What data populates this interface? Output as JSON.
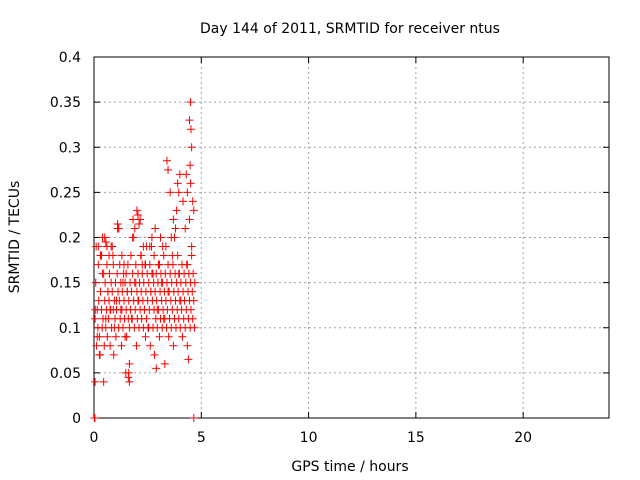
{
  "chart_data": {
    "type": "scatter",
    "title": "Day 144 of 2011, SRMTID for receiver ntus",
    "xlabel": "GPS time / hours",
    "ylabel": "SRMTID / TECUs",
    "xlim": [
      0,
      24
    ],
    "ylim": [
      0,
      0.4
    ],
    "x_ticks": [
      0,
      5,
      10,
      15,
      20
    ],
    "y_ticks": [
      0,
      0.05,
      0.1,
      0.15,
      0.2,
      0.25,
      0.3,
      0.35,
      0.4
    ],
    "y_tick_labels": [
      "0",
      "0.05",
      "0.1",
      "0.15",
      "0.2",
      "0.25",
      "0.3",
      "0.35",
      "0.4"
    ],
    "grid": true,
    "marker": "plus",
    "colors": {
      "points": "#ff0000",
      "grid": "#a0a0a0",
      "axes": "#000000"
    },
    "series": [
      {
        "x": [
          0.05,
          0.08,
          0.1,
          0.12,
          0.15,
          0.18,
          0.2,
          0.22,
          0.25,
          0.28,
          0.3,
          0.32,
          0.35,
          0.38,
          0.4,
          0.42,
          0.45,
          0.48,
          0.5,
          0.52,
          0.55,
          0.58,
          0.6,
          0.62,
          0.65,
          0.68,
          0.7,
          0.72,
          0.75,
          0.78,
          0.8,
          0.82,
          0.85,
          0.88,
          0.9,
          0.92,
          0.95,
          0.98,
          1.0,
          1.02,
          1.05,
          1.08,
          1.1,
          1.12,
          1.15,
          1.18,
          1.2,
          1.22,
          1.25,
          1.28,
          1.3,
          1.32,
          1.35,
          1.38,
          1.4,
          1.42,
          1.45,
          1.48,
          1.5,
          1.52,
          1.55,
          1.58,
          1.6,
          1.62,
          1.65,
          1.68,
          1.7,
          1.72,
          1.75,
          1.78,
          1.8,
          1.82,
          1.85,
          1.88,
          1.9,
          1.92,
          1.95,
          1.98,
          2.0,
          2.02,
          2.05,
          2.08,
          2.1,
          2.12,
          2.15,
          2.18,
          2.2,
          2.22,
          2.25,
          2.28,
          2.3,
          2.32,
          2.35,
          2.38,
          2.4,
          2.42,
          2.45,
          2.48,
          2.5,
          2.52,
          2.55,
          2.58,
          2.6,
          2.62,
          2.65,
          2.68,
          2.7,
          2.72,
          2.75,
          2.78,
          2.8,
          2.82,
          2.85,
          2.88,
          2.9,
          2.92,
          2.95,
          2.98,
          3.0,
          3.02,
          3.05,
          3.08,
          3.1,
          3.12,
          3.15,
          3.18,
          3.2,
          3.22,
          3.25,
          3.28,
          3.3,
          3.32,
          3.35,
          3.38,
          3.4,
          3.42,
          3.45,
          3.48,
          3.5,
          3.52,
          3.55,
          3.58,
          3.6,
          3.62,
          3.65,
          3.68,
          3.7,
          3.72,
          3.75,
          3.78,
          3.8,
          3.82,
          3.85,
          3.88,
          3.9,
          3.92,
          3.95,
          3.98,
          4.0,
          4.02,
          4.05,
          4.08,
          4.1,
          4.12,
          4.15,
          4.18,
          4.2,
          4.22,
          4.25,
          4.28,
          4.3,
          4.32,
          4.35,
          4.38,
          4.4,
          4.42,
          4.45,
          4.48,
          4.5,
          4.52,
          4.55,
          4.58,
          4.6,
          4.62,
          4.65,
          4.68,
          4.7,
          0.06,
          0.15,
          0.25,
          0.35,
          0.45,
          0.55,
          0.65,
          0.75,
          0.85,
          0.95,
          1.05,
          1.15,
          1.25,
          1.35,
          1.45,
          1.55,
          1.65,
          1.75,
          1.85,
          1.95,
          2.05,
          2.15,
          2.25,
          2.35,
          2.45,
          2.55,
          2.65,
          2.75,
          2.85,
          2.95,
          3.05,
          3.15,
          3.25,
          3.35,
          3.45,
          3.55,
          3.65,
          3.75,
          3.85,
          3.95,
          4.05,
          4.15,
          4.25,
          4.35,
          4.45,
          4.55,
          4.65,
          0.02,
          0.03,
          0.04,
          0.05,
          1.6,
          1.62,
          1.65,
          2.9,
          3.3,
          4.4,
          4.45,
          4.5,
          4.52,
          4.55,
          4.48,
          4.5,
          3.4,
          3.45,
          2.0,
          2.05,
          2.1,
          1.1,
          1.15,
          0.5,
          0.55,
          0.6,
          4.3,
          4.35,
          4.6,
          4.65,
          3.9,
          3.95,
          4.0,
          3.6,
          3.7,
          3.8,
          2.6,
          2.7,
          2.8,
          3.0,
          3.1,
          3.2,
          1.8,
          1.9,
          2.2,
          2.3,
          2.4,
          1.3,
          1.4,
          1.5,
          0.7,
          0.8,
          0.9,
          0.2,
          0.3,
          0.4
        ],
        "y": [
          0.11,
          0.15,
          0.19,
          0.08,
          0.12,
          0.1,
          0.17,
          0.13,
          0.09,
          0.07,
          0.14,
          0.18,
          0.12,
          0.1,
          0.16,
          0.11,
          0.04,
          0.08,
          0.13,
          0.15,
          0.1,
          0.12,
          0.17,
          0.09,
          0.14,
          0.11,
          0.13,
          0.16,
          0.08,
          0.12,
          0.15,
          0.1,
          0.14,
          0.18,
          0.12,
          0.07,
          0.13,
          0.11,
          0.15,
          0.09,
          0.12,
          0.16,
          0.21,
          0.14,
          0.1,
          0.13,
          0.17,
          0.11,
          0.15,
          0.08,
          0.12,
          0.14,
          0.1,
          0.16,
          0.13,
          0.11,
          0.15,
          0.05,
          0.12,
          0.09,
          0.14,
          0.17,
          0.11,
          0.13,
          0.1,
          0.15,
          0.12,
          0.18,
          0.14,
          0.11,
          0.16,
          0.22,
          0.13,
          0.1,
          0.15,
          0.12,
          0.17,
          0.08,
          0.14,
          0.11,
          0.16,
          0.13,
          0.1,
          0.15,
          0.12,
          0.18,
          0.14,
          0.11,
          0.16,
          0.13,
          0.1,
          0.15,
          0.12,
          0.17,
          0.09,
          0.14,
          0.11,
          0.16,
          0.13,
          0.1,
          0.15,
          0.12,
          0.17,
          0.08,
          0.14,
          0.19,
          0.16,
          0.13,
          0.1,
          0.15,
          0.12,
          0.07,
          0.14,
          0.11,
          0.16,
          0.13,
          0.1,
          0.15,
          0.12,
          0.17,
          0.09,
          0.14,
          0.11,
          0.16,
          0.13,
          0.1,
          0.15,
          0.12,
          0.18,
          0.14,
          0.11,
          0.16,
          0.13,
          0.1,
          0.15,
          0.12,
          0.17,
          0.09,
          0.14,
          0.11,
          0.16,
          0.13,
          0.1,
          0.15,
          0.12,
          0.17,
          0.08,
          0.14,
          0.11,
          0.16,
          0.13,
          0.1,
          0.15,
          0.12,
          0.18,
          0.14,
          0.11,
          0.16,
          0.13,
          0.1,
          0.15,
          0.12,
          0.17,
          0.09,
          0.14,
          0.11,
          0.16,
          0.13,
          0.1,
          0.15,
          0.12,
          0.17,
          0.08,
          0.14,
          0.11,
          0.16,
          0.13,
          0.1,
          0.15,
          0.12,
          0.18,
          0.14,
          0.11,
          0.16,
          0.13,
          0.1,
          0.15,
          0.12,
          0.09,
          0.07,
          0.18,
          0.16,
          0.11,
          0.14,
          0.12,
          0.19,
          0.1,
          0.13,
          0.21,
          0.12,
          0.15,
          0.09,
          0.14,
          0.06,
          0.11,
          0.2,
          0.15,
          0.13,
          0.22,
          0.17,
          0.12,
          0.19,
          0.1,
          0.14,
          0.16,
          0.21,
          0.12,
          0.17,
          0.15,
          0.11,
          0.19,
          0.14,
          0.25,
          0.18,
          0.2,
          0.23,
          0.16,
          0.13,
          0.24,
          0.21,
          0.17,
          0.22,
          0.19,
          0.0,
          0.0,
          0.0,
          0.0,
          0.04,
          0.045,
          0.05,
          0.04,
          0.055,
          0.06,
          0.065,
          0.33,
          0.35,
          0.32,
          0.3,
          0.28,
          0.26,
          0.285,
          0.275,
          0.23,
          0.225,
          0.215,
          0.215,
          0.21,
          0.2,
          0.195,
          0.19,
          0.27,
          0.25,
          0.24,
          0.23,
          0.26,
          0.25,
          0.27,
          0.2,
          0.22,
          0.21,
          0.19,
          0.2,
          0.18,
          0.17,
          0.2,
          0.19,
          0.2,
          0.21,
          0.18,
          0.19,
          0.17,
          0.18,
          0.17,
          0.16,
          0.18,
          0.19,
          0.17,
          0.19,
          0.18,
          0.2
        ]
      }
    ]
  }
}
